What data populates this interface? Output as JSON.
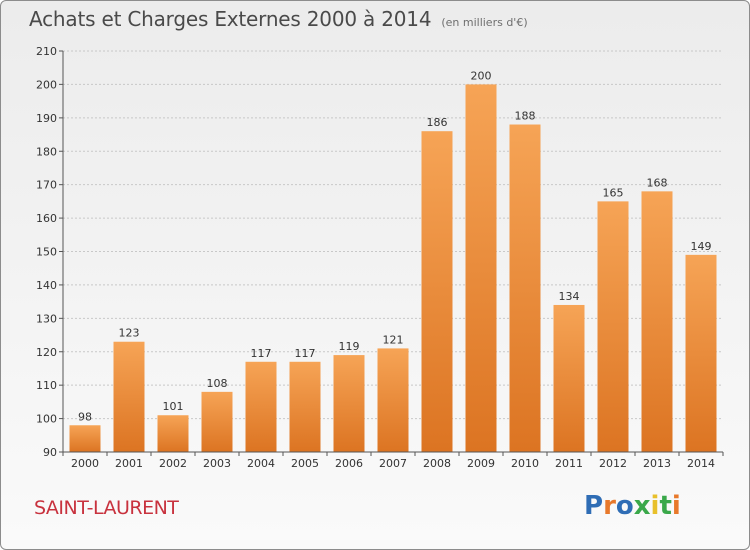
{
  "header": {
    "title": "Achats et Charges Externes 2000 à 2014",
    "unit": "(en milliers d'€)"
  },
  "footer": {
    "city": "SAINT-LAURENT",
    "logo_text": "Proxiti",
    "logo_colors": [
      "#2f6db5",
      "#e8792b",
      "#2f6db5",
      "#3aa84a",
      "#e8c02b",
      "#3aa84a",
      "#e8792b"
    ]
  },
  "colors": {
    "bar_top": "#f6a456",
    "bar_bottom": "#dc7422",
    "axis": "#555555",
    "grid": "#c8c8c8"
  },
  "chart_data": {
    "type": "bar",
    "categories": [
      "2000",
      "2001",
      "2002",
      "2003",
      "2004",
      "2005",
      "2006",
      "2007",
      "2008",
      "2009",
      "2010",
      "2011",
      "2012",
      "2013",
      "2014"
    ],
    "values": [
      98,
      123,
      101,
      108,
      117,
      117,
      119,
      121,
      186,
      200,
      188,
      134,
      165,
      168,
      149
    ],
    "ylim": [
      90,
      210
    ],
    "yticks": [
      90,
      100,
      110,
      120,
      130,
      140,
      150,
      160,
      170,
      180,
      190,
      200,
      210
    ],
    "grid": true
  }
}
